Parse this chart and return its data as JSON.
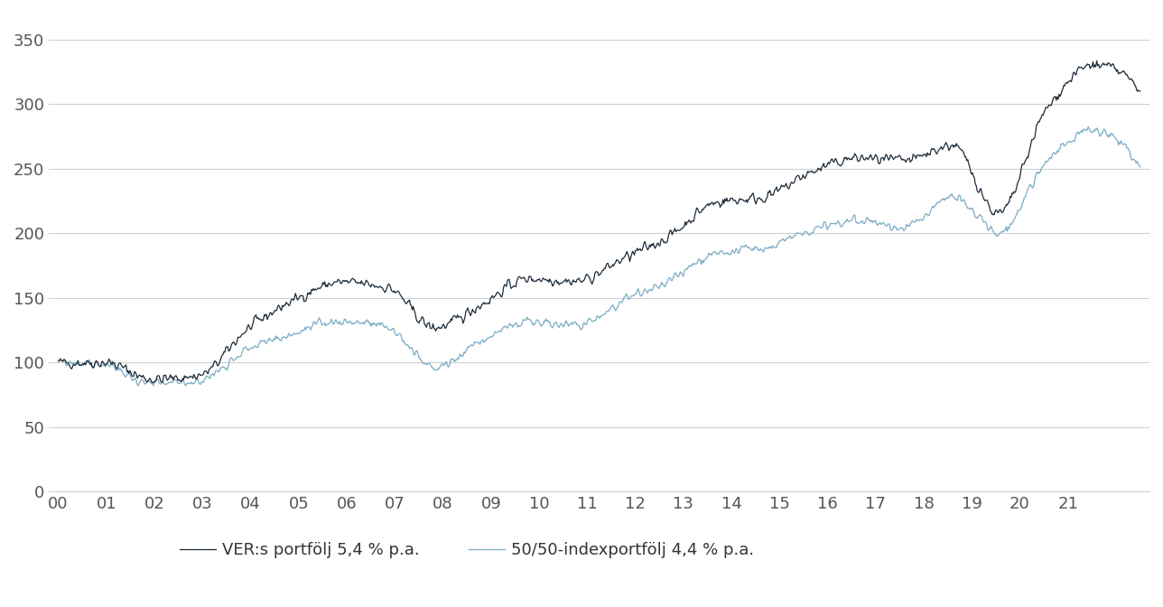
{
  "title": "",
  "xlabel": "",
  "ylabel": "",
  "ylim": [
    0,
    370
  ],
  "yticks": [
    0,
    50,
    100,
    150,
    200,
    250,
    300,
    350
  ],
  "xtick_labels": [
    "00",
    "01",
    "02",
    "03",
    "04",
    "05",
    "06",
    "07",
    "08",
    "09",
    "10",
    "11",
    "12",
    "13",
    "14",
    "15",
    "16",
    "17",
    "18",
    "19",
    "20",
    "21"
  ],
  "legend_labels": [
    "VER:s portfölj 5,4 % p.a.",
    "50/50-indexportfölj 4,4 % p.a."
  ],
  "ver_color": "#1c2b39",
  "index_color": "#7bacc4",
  "background_color": "#ffffff",
  "grid_color": "#d0d0d0",
  "ver_annual": [
    100,
    100,
    87,
    90,
    125,
    148,
    162,
    158,
    127,
    145,
    165,
    163,
    180,
    198,
    224,
    228,
    247,
    258,
    256,
    268,
    215,
    295,
    330,
    310
  ],
  "idx_annual": [
    100,
    98,
    83,
    86,
    110,
    122,
    132,
    127,
    96,
    117,
    131,
    129,
    147,
    163,
    185,
    188,
    202,
    210,
    205,
    228,
    200,
    255,
    280,
    250
  ],
  "n_points": 1150,
  "noise_seed_ver": 42,
  "noise_seed_idx": 99,
  "noise_scale_ver": 3.5,
  "noise_scale_idx": 2.8
}
